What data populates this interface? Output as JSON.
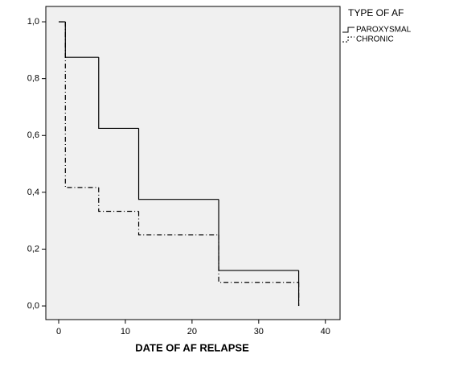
{
  "chart_data": {
    "type": "step",
    "x_label": "DATE OF AF RELAPSE",
    "legend_title": "TYPE OF AF",
    "x": [
      0,
      1,
      6,
      12,
      24,
      36
    ],
    "series": [
      {
        "name": "PAROXYSMAL",
        "color": "#000000",
        "style": "solid",
        "values": [
          1,
          0.875,
          0.625,
          0.375,
          0.125,
          0
        ]
      },
      {
        "name": "CHRONIC",
        "color": "#000000",
        "style": "dashdot",
        "values": [
          1,
          0.417,
          0.333,
          0.25,
          0.083,
          0
        ]
      }
    ],
    "xlim": [
      -1.93,
      42.2
    ],
    "ylim": [
      -0.048,
      1.054
    ],
    "xticks": [
      0,
      10,
      20,
      30,
      40
    ],
    "yticks": [
      {
        "value": 0,
        "label": "0,0"
      },
      {
        "value": 0.2,
        "label": "0,2"
      },
      {
        "value": 0.4,
        "label": "0,4"
      },
      {
        "value": 0.6,
        "label": "0,6"
      },
      {
        "value": 0.8,
        "label": "0,8"
      },
      {
        "value": 1,
        "label": "1,0"
      }
    ],
    "legend": "right"
  }
}
